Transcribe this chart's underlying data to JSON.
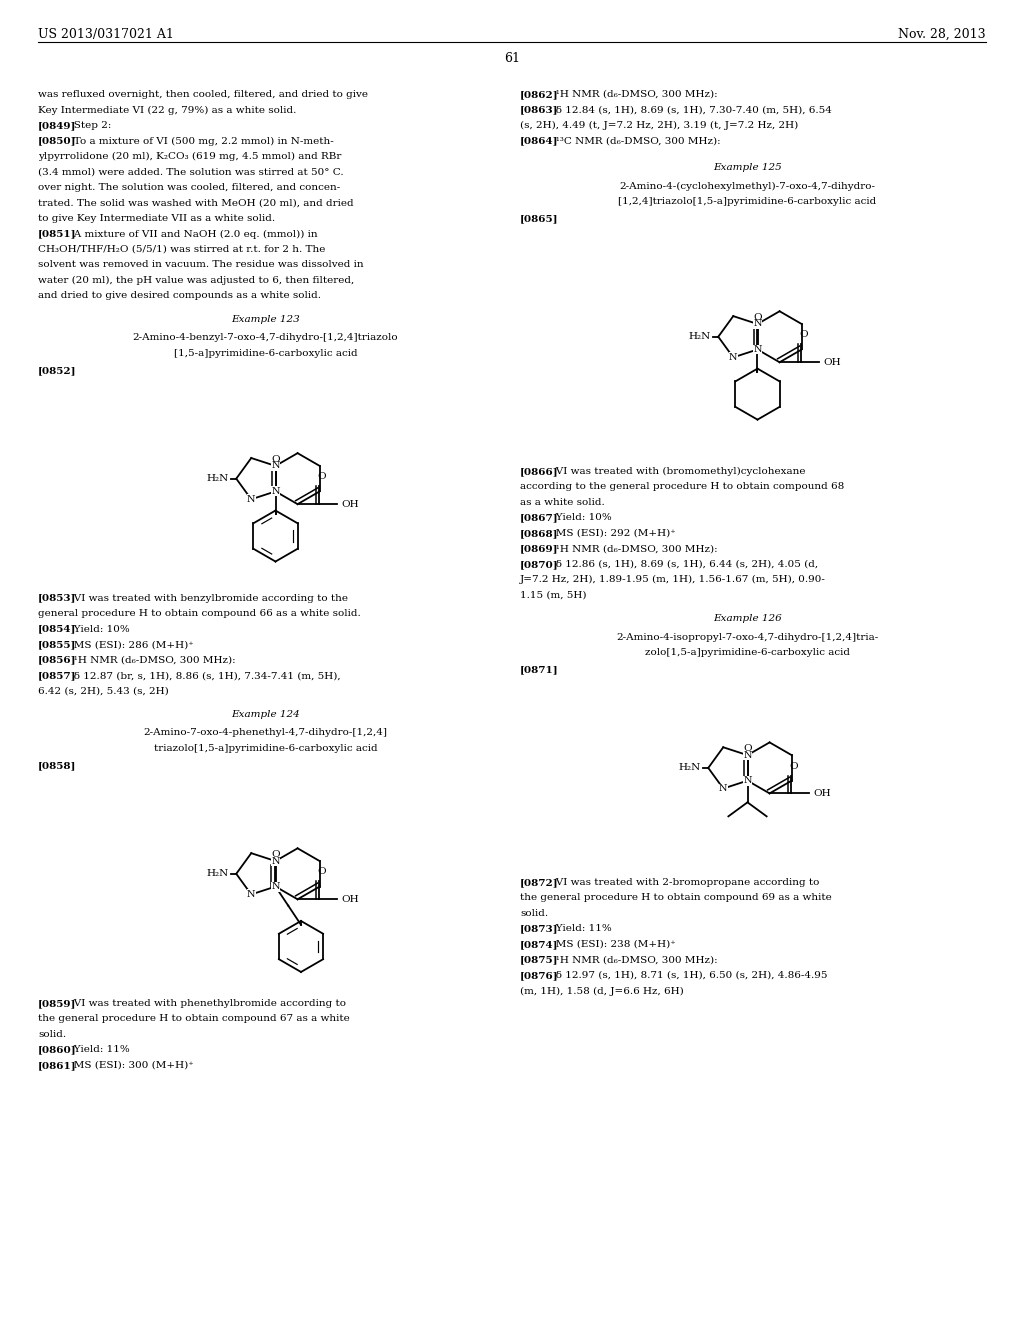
{
  "page_bg": "#ffffff",
  "header_left": "US 2013/0317021 A1",
  "header_right": "Nov. 28, 2013",
  "page_number": "61",
  "fig_width": 10.24,
  "fig_height": 13.2,
  "dpi": 100
}
